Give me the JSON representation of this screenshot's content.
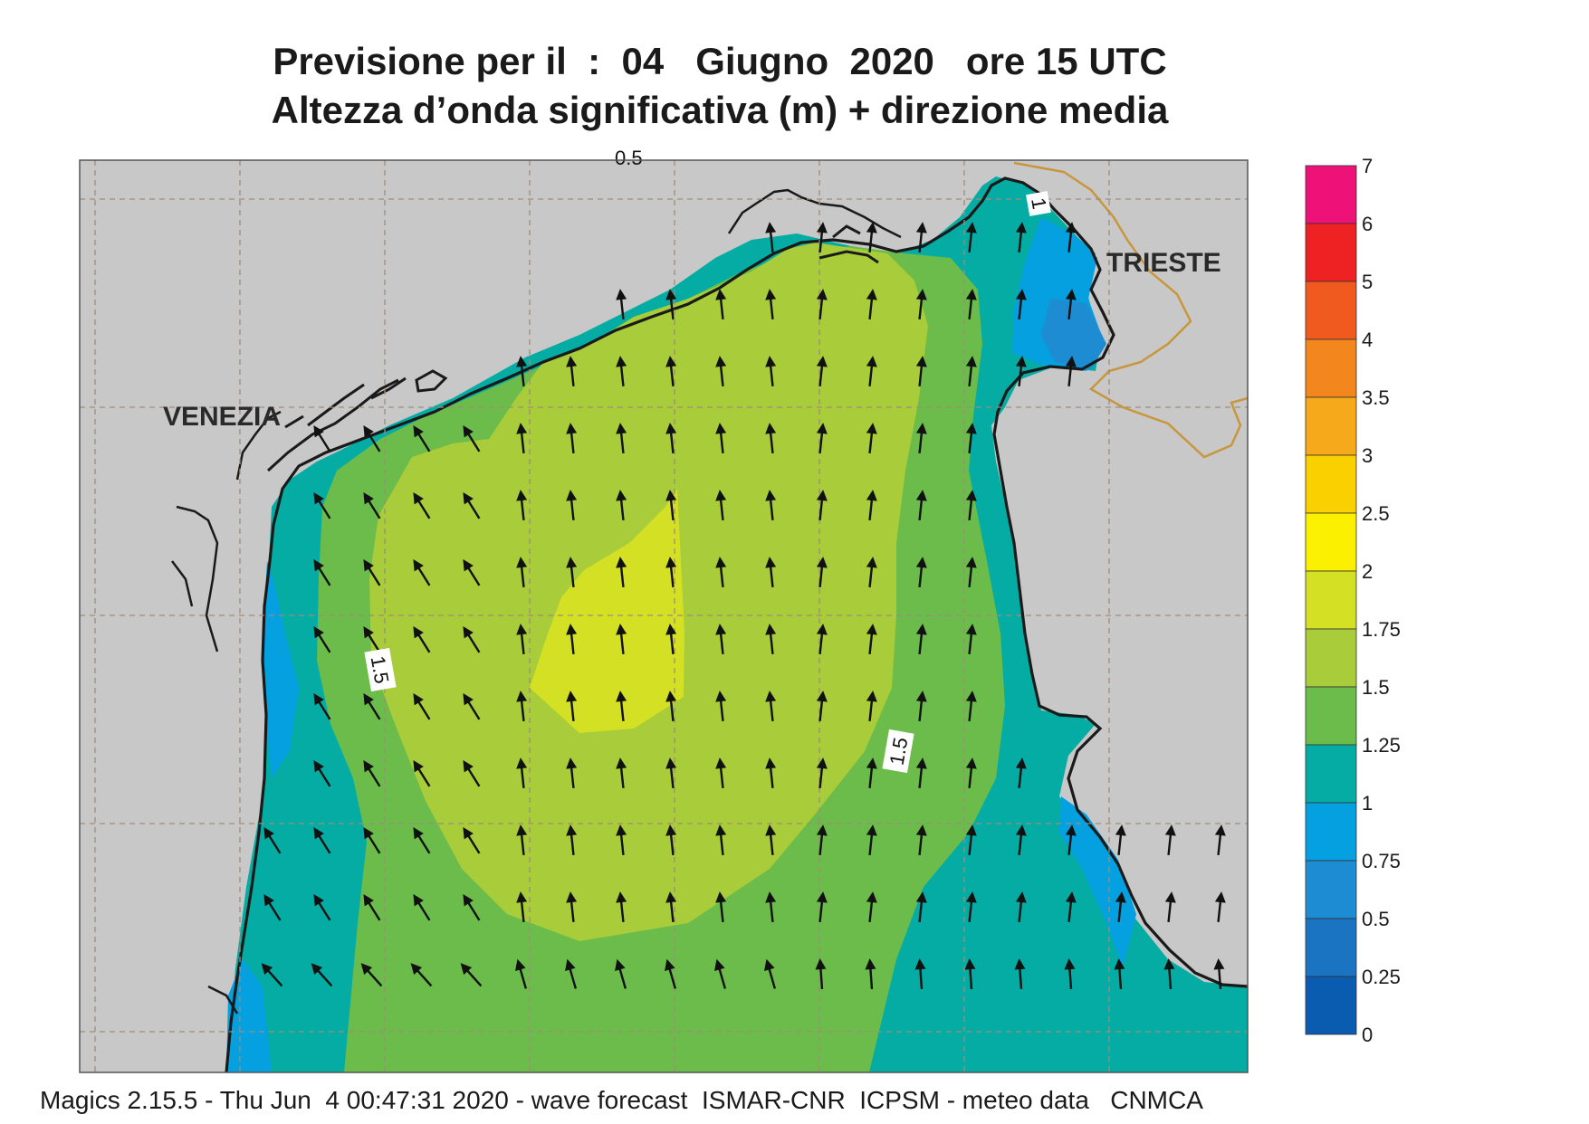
{
  "header": {
    "title_line1": "Previsione per il  :  04   Giugno  2020   ore 15 UTC",
    "title_line2": "Altezza d’onda significativa (m) + direzione media"
  },
  "map": {
    "city_venezia": "VENEZIA",
    "city_trieste": "TRIESTE",
    "contour_labels": [
      "1.5",
      "1.5",
      "1",
      "0.5"
    ],
    "wave_direction": "north-north-west",
    "colors": {
      "land": "#c8c8c8",
      "coast": "#1a1a1a",
      "border": "#c8963c",
      "grid": "#a08c78"
    }
  },
  "legend": {
    "labels": [
      "7",
      "6",
      "5",
      "4",
      "3.5",
      "3",
      "2.5",
      "2",
      "1.75",
      "1.5",
      "1.25",
      "1",
      "0.75",
      "0.5",
      "0.25",
      "0"
    ],
    "colors": [
      "#ee1177",
      "#ee2222",
      "#f05a1e",
      "#f3871e",
      "#f7a91c",
      "#fbd000",
      "#fbf000",
      "#d4e024",
      "#a8cc3a",
      "#6cbc4c",
      "#05aca4",
      "#05a0e0",
      "#1e8cd2",
      "#1a74c2",
      "#0a5cb0"
    ]
  },
  "footer": {
    "text": "Magics 2.15.5 - Thu Jun  4 00:47:31 2020 - wave forecast  ISMAR-CNR  ICPSM - meteo data   CNMCA"
  }
}
